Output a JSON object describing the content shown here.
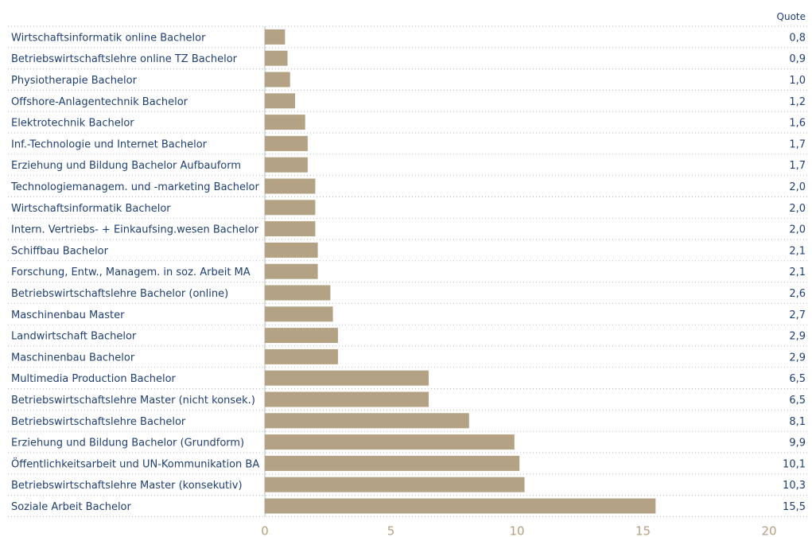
{
  "chart_data": {
    "type": "bar",
    "orientation": "horizontal",
    "value_column_header": "Quote",
    "categories": [
      "Wirtschaftsinformatik online Bachelor",
      "Betriebswirtschaftslehre online TZ Bachelor",
      "Physiotherapie Bachelor",
      "Offshore-Anlagentechnik Bachelor",
      "Elektrotechnik Bachelor",
      "Inf.-Technologie und Internet Bachelor",
      "Erziehung und Bildung Bachelor Aufbauform",
      "Technologiemanagem. und -marketing Bachelor",
      "Wirtschaftsinformatik Bachelor",
      "Intern. Vertriebs- + Einkaufsing.wesen Bachelor",
      "Schiffbau Bachelor",
      "Forschung, Entw., Managem. in soz. Arbeit MA",
      "Betriebswirtschaftslehre Bachelor (online)",
      "Maschinenbau Master",
      "Landwirtschaft Bachelor",
      "Maschinenbau Bachelor",
      "Multimedia Production Bachelor",
      "Betriebswirtschaftslehre Master (nicht konsek.)",
      "Betriebswirtschaftslehre Bachelor",
      "Erziehung und Bildung Bachelor (Grundform)",
      "Öffentlichkeitsarbeit und UN-Kommunikation BA",
      "Betriebswirtschaftslehre Master (konsekutiv)",
      "Soziale Arbeit Bachelor"
    ],
    "values": [
      0.8,
      0.9,
      1.0,
      1.2,
      1.6,
      1.7,
      1.7,
      2.0,
      2.0,
      2.0,
      2.1,
      2.1,
      2.6,
      2.7,
      2.9,
      2.9,
      6.5,
      6.5,
      8.1,
      9.9,
      10.1,
      10.3,
      15.5
    ],
    "value_labels": [
      "0,8",
      "0,9",
      "1,0",
      "1,2",
      "1,6",
      "1,7",
      "1,7",
      "2,0",
      "2,0",
      "2,0",
      "2,1",
      "2,1",
      "2,6",
      "2,7",
      "2,9",
      "2,9",
      "6,5",
      "6,5",
      "8,1",
      "9,9",
      "10,1",
      "10,3",
      "15,5"
    ],
    "xlim": [
      0,
      20
    ],
    "x_ticks": [
      0,
      5,
      10,
      15,
      20
    ],
    "x_tick_labels": [
      "0",
      "5",
      "10",
      "15",
      "20"
    ],
    "title": "",
    "xlabel": "",
    "ylabel": "",
    "grid": "dotted row separators",
    "colors": {
      "bar": "#b3a283",
      "label_text": "#1f3f73",
      "tick_text": "#b79f80",
      "grid": "#b8b8b8"
    }
  }
}
